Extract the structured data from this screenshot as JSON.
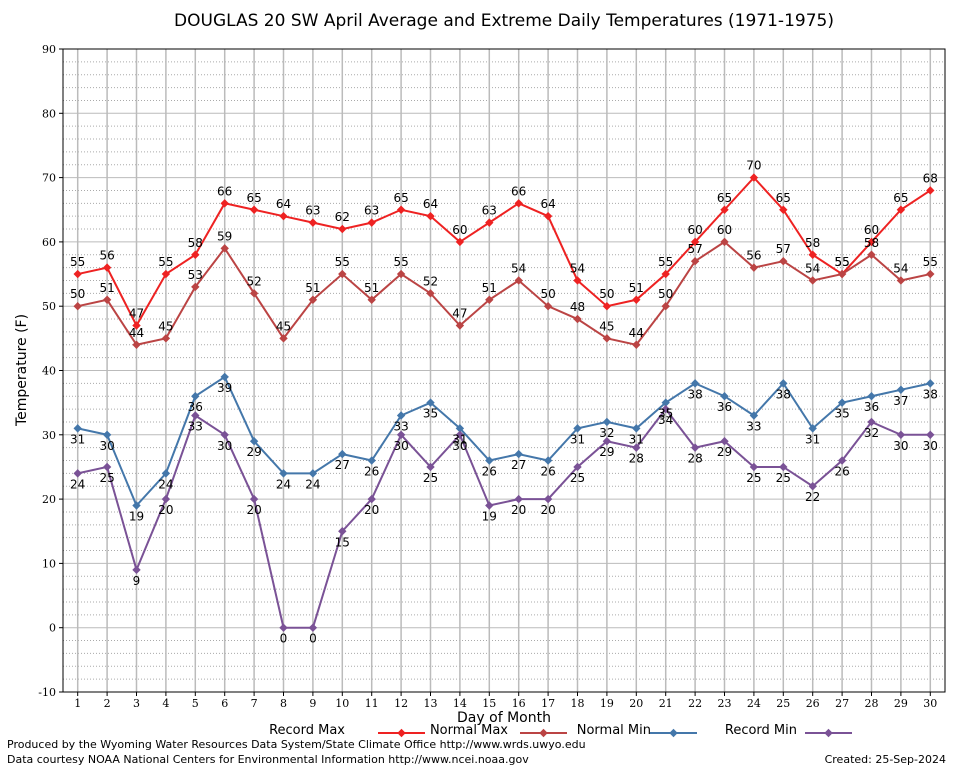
{
  "chart_data": {
    "type": "line",
    "title": "DOUGLAS 20 SW April Average and Extreme Daily Temperatures (1971-1975)",
    "xlabel": "Day of Month",
    "ylabel": "Temperature (F)",
    "ylim": [
      -10,
      90
    ],
    "yticks": [
      -10,
      0,
      10,
      20,
      30,
      40,
      50,
      60,
      70,
      80,
      90
    ],
    "x": [
      1,
      2,
      3,
      4,
      5,
      6,
      7,
      8,
      9,
      10,
      11,
      12,
      13,
      14,
      15,
      16,
      17,
      18,
      19,
      20,
      21,
      22,
      23,
      24,
      25,
      26,
      27,
      28,
      29,
      30
    ],
    "grid": true,
    "legend_position": "bottom",
    "series": [
      {
        "name": "Record Max",
        "color": "#ee2222",
        "values": [
          55,
          56,
          47,
          55,
          58,
          66,
          65,
          64,
          63,
          62,
          63,
          65,
          64,
          60,
          63,
          66,
          64,
          54,
          50,
          51,
          55,
          60,
          65,
          70,
          65,
          58,
          55,
          60,
          65,
          68
        ]
      },
      {
        "name": "Normal Max",
        "color": "#bb4444",
        "values": [
          50,
          51,
          44,
          45,
          53,
          59,
          52,
          45,
          51,
          55,
          51,
          55,
          52,
          47,
          51,
          54,
          50,
          48,
          45,
          44,
          50,
          57,
          60,
          56,
          57,
          54,
          55,
          58,
          54,
          55
        ]
      },
      {
        "name": "Normal Min",
        "color": "#4477aa",
        "values": [
          31,
          30,
          19,
          24,
          36,
          39,
          29,
          24,
          24,
          27,
          26,
          33,
          35,
          31,
          26,
          27,
          26,
          31,
          32,
          31,
          35,
          38,
          36,
          33,
          38,
          31,
          35,
          36,
          37,
          38
        ]
      },
      {
        "name": "Record Min",
        "color": "#7a5296",
        "values": [
          24,
          25,
          9,
          20,
          33,
          30,
          20,
          0,
          0,
          15,
          20,
          30,
          25,
          30,
          19,
          20,
          20,
          25,
          29,
          28,
          34,
          28,
          29,
          25,
          25,
          22,
          26,
          32,
          30,
          30
        ]
      }
    ]
  },
  "footer": {
    "produced_by": "Produced by the Wyoming Water Resources Data System/State Climate Office http://www.wrds.uwyo.edu",
    "data_courtesy": "Data courtesy NOAA National Centers for Environmental Information http://www.ncei.noaa.gov",
    "created": "Created:  25-Sep-2024"
  }
}
